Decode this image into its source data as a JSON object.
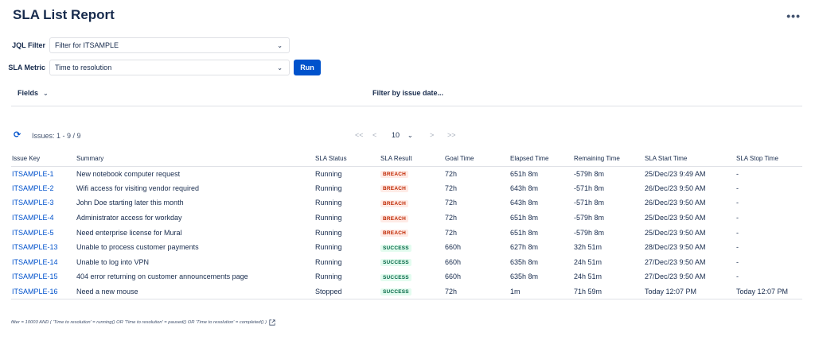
{
  "page": {
    "title": "SLA List Report",
    "more_label": "•••"
  },
  "filters": {
    "jql_label": "JQL Filter",
    "jql_value": "Filter for ITSAMPLE",
    "metric_label": "SLA Metric",
    "metric_value": "Time to resolution",
    "run_label": "Run"
  },
  "toolbar": {
    "fields_label": "Fields",
    "filter_date_label": "Filter by issue date..."
  },
  "results": {
    "issues_label": "Issues: 1 - 9 / 9"
  },
  "pager": {
    "first": "<<",
    "prev": "<",
    "page_size": "10",
    "next": ">",
    "last": ">>"
  },
  "table": {
    "headers": [
      "Issue Key",
      "Summary",
      "SLA Status",
      "SLA Result",
      "Goal Time",
      "Elapsed Time",
      "Remaining Time",
      "SLA Start Time",
      "SLA Stop Time"
    ],
    "rows": [
      [
        "ITSAMPLE-1",
        "New notebook computer request",
        "Running",
        "BREACH",
        "72h",
        "651h 8m",
        "-579h 8m",
        "25/Dec/23 9:49 AM",
        "-"
      ],
      [
        "ITSAMPLE-2",
        "Wifi access for visiting vendor required",
        "Running",
        "BREACH",
        "72h",
        "643h 8m",
        "-571h 8m",
        "26/Dec/23 9:50 AM",
        "-"
      ],
      [
        "ITSAMPLE-3",
        "John Doe starting later this month",
        "Running",
        "BREACH",
        "72h",
        "643h 8m",
        "-571h 8m",
        "26/Dec/23 9:50 AM",
        "-"
      ],
      [
        "ITSAMPLE-4",
        "Administrator access for workday",
        "Running",
        "BREACH",
        "72h",
        "651h 8m",
        "-579h 8m",
        "25/Dec/23 9:50 AM",
        "-"
      ],
      [
        "ITSAMPLE-5",
        "Need enterprise license for Mural",
        "Running",
        "BREACH",
        "72h",
        "651h 8m",
        "-579h 8m",
        "25/Dec/23 9:50 AM",
        "-"
      ],
      [
        "ITSAMPLE-13",
        "Unable to process customer payments",
        "Running",
        "SUCCESS",
        "660h",
        "627h 8m",
        "32h 51m",
        "28/Dec/23 9:50 AM",
        "-"
      ],
      [
        "ITSAMPLE-14",
        "Unable to log into VPN",
        "Running",
        "SUCCESS",
        "660h",
        "635h 8m",
        "24h 51m",
        "27/Dec/23 9:50 AM",
        "-"
      ],
      [
        "ITSAMPLE-15",
        "404 error returning on customer announcements page",
        "Running",
        "SUCCESS",
        "660h",
        "635h 8m",
        "24h 51m",
        "27/Dec/23 9:50 AM",
        "-"
      ],
      [
        "ITSAMPLE-16",
        "Need a new mouse",
        "Stopped",
        "SUCCESS",
        "72h",
        "1m",
        "71h 59m",
        "Today 12:07 PM",
        "Today 12:07 PM"
      ]
    ]
  },
  "footer": {
    "jql_text": "filter = 10003 AND ( 'Time to resolution' = running() OR 'Time to resolution' = paused() OR 'Time to resolution' = completed() )"
  },
  "colors": {
    "accent": "#0052cc",
    "breach_bg": "#ffebe6",
    "breach_fg": "#bf2600",
    "success_bg": "#e3fcef",
    "success_fg": "#006644"
  },
  "icons": {
    "refresh": "refresh-icon",
    "more": "more-icon",
    "external": "external-link-icon",
    "chevron": "chevron-down-icon"
  }
}
